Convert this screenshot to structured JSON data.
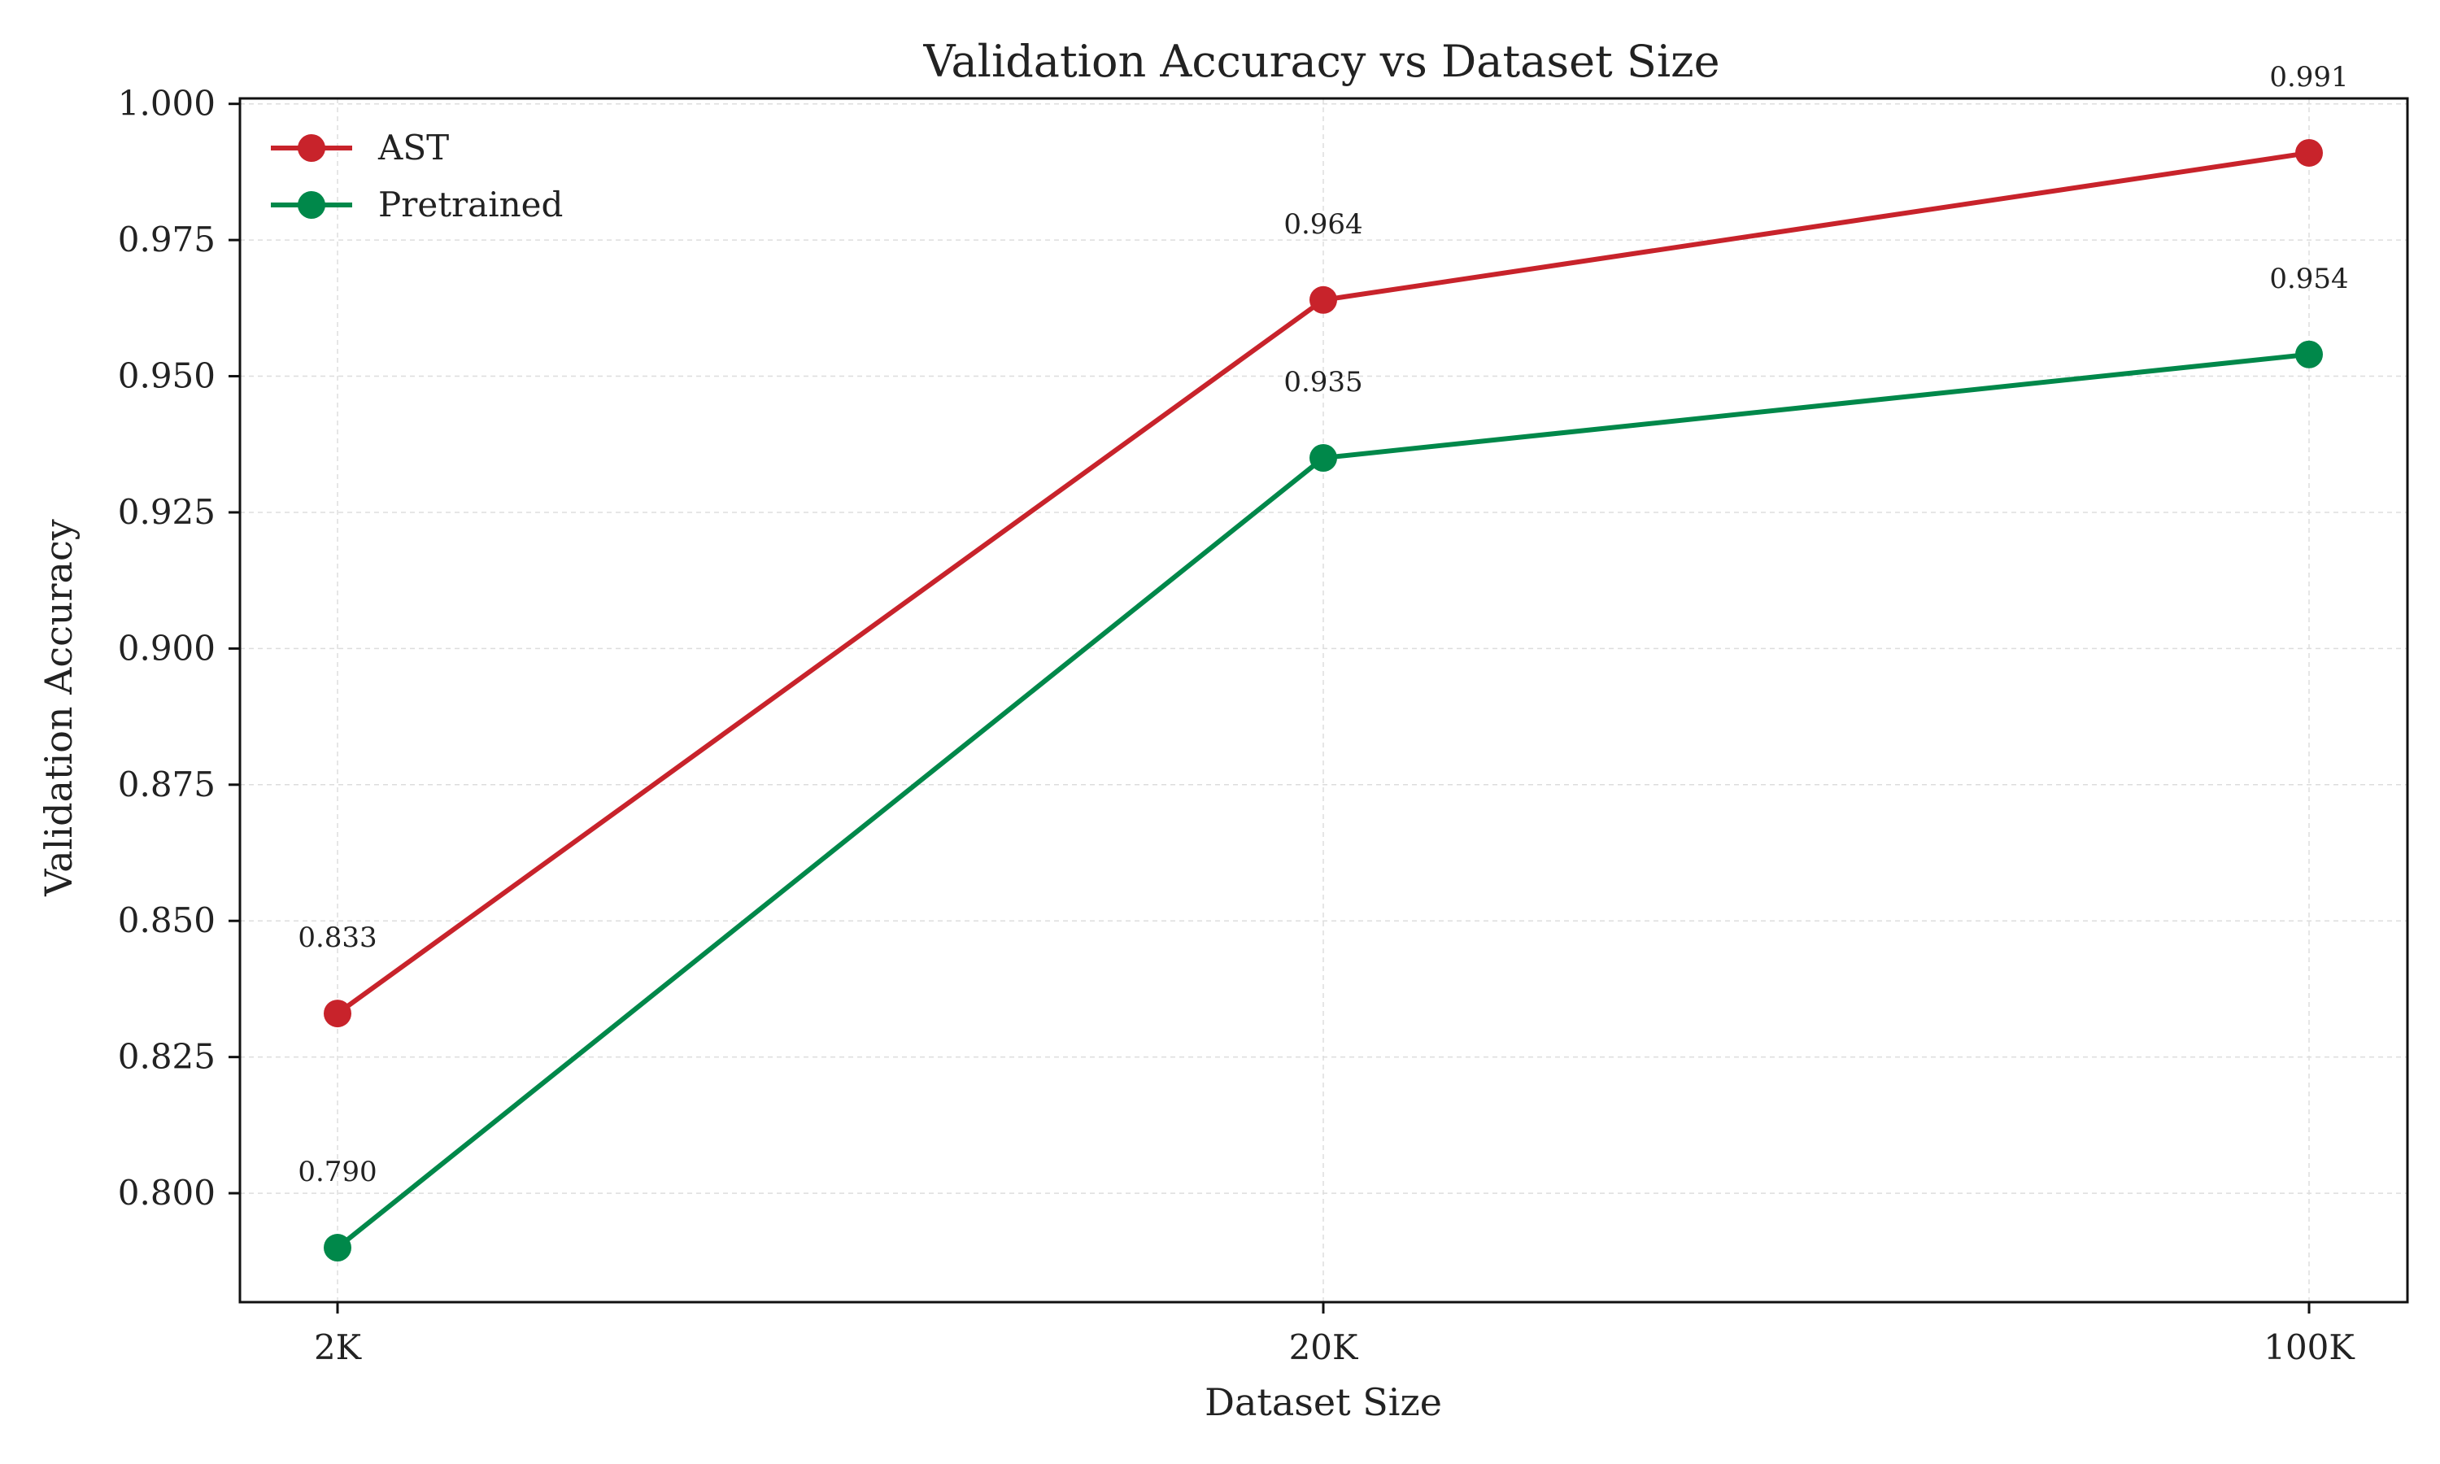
{
  "chart_data": {
    "type": "line",
    "title": "Validation Accuracy vs Dataset Size",
    "xlabel": "Dataset Size",
    "ylabel": "Validation Accuracy",
    "categories": [
      "2K",
      "20K",
      "100K"
    ],
    "ylim": [
      0.78,
      1.001
    ],
    "yticks": [
      "0.800",
      "0.825",
      "0.850",
      "0.875",
      "0.900",
      "0.925",
      "0.950",
      "0.975",
      "1.000"
    ],
    "grid": true,
    "legend_position": "top-left",
    "series": [
      {
        "name": "AST",
        "color": "#c8232b",
        "values": [
          0.833,
          0.964,
          0.991
        ],
        "labels": [
          "0.833",
          "0.964",
          "0.991"
        ]
      },
      {
        "name": "Pretrained",
        "color": "#00884a",
        "values": [
          0.79,
          0.935,
          0.954
        ],
        "labels": [
          "0.790",
          "0.935",
          "0.954"
        ]
      }
    ]
  }
}
